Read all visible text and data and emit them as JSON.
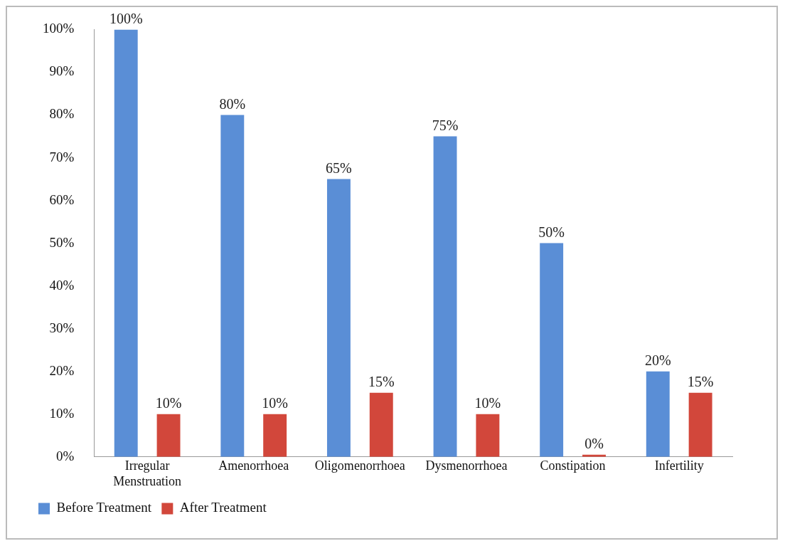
{
  "chart_data": {
    "type": "bar",
    "categories": [
      "Irregular Menstruation",
      "Amenorrhoea",
      "Oligomenorrhoea",
      "Dysmenorrhoea",
      "Constipation",
      "Infertility"
    ],
    "series": [
      {
        "name": "Before Treatment",
        "color": "#5a8ed6",
        "values": [
          100,
          80,
          65,
          75,
          50,
          20
        ],
        "value_labels": [
          "100%",
          "80%",
          "65%",
          "75%",
          "50%",
          "20%"
        ]
      },
      {
        "name": "After Treatment",
        "color": "#d2473b",
        "values": [
          10,
          10,
          15,
          10,
          0,
          15
        ],
        "value_labels": [
          "10%",
          "10%",
          "15%",
          "10%",
          "0%",
          "15%"
        ]
      }
    ],
    "ylim": [
      0,
      100
    ],
    "yticks": [
      {
        "value": 0,
        "label": "0%"
      },
      {
        "value": 10,
        "label": "10%"
      },
      {
        "value": 20,
        "label": "20%"
      },
      {
        "value": 30,
        "label": "30%"
      },
      {
        "value": 40,
        "label": "40%"
      },
      {
        "value": 50,
        "label": "50%"
      },
      {
        "value": 60,
        "label": "60%"
      },
      {
        "value": 70,
        "label": "70%"
      },
      {
        "value": 80,
        "label": "80%"
      },
      {
        "value": 90,
        "label": "90%"
      },
      {
        "value": 100,
        "label": "100%"
      }
    ],
    "grid": false,
    "legend": "bottom"
  }
}
